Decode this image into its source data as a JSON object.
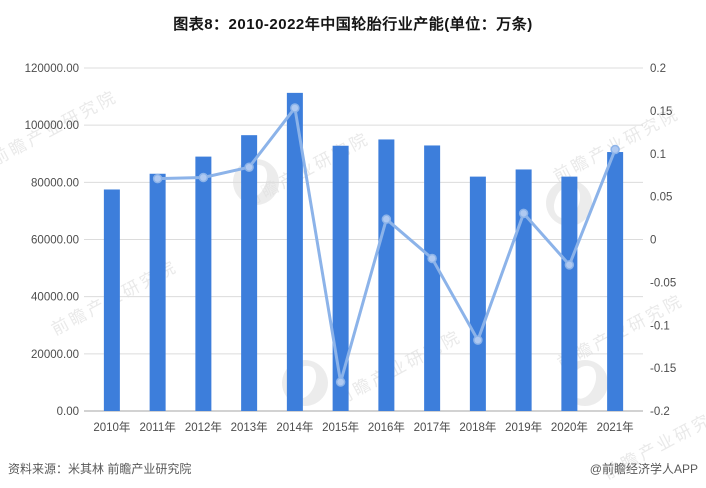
{
  "title": "图表8：2010-2022年中国轮胎行业产能(单位：万条)",
  "footer": {
    "source": "资料来源：米其林 前瞻产业研究院",
    "brand": "@前瞻经济学人APP"
  },
  "watermark": {
    "text": "前瞻产业研究院"
  },
  "colors": {
    "bar": "#3D7EDB",
    "line": "#8CB3E9",
    "marker_fill": "#AFC9F1",
    "gridline": "#dcdcdc",
    "axis_line": "#a6a6a6",
    "tick_text": "#4d4d4d"
  },
  "chart_data": {
    "type": "bar",
    "subtype": "bar+line combo, line on secondary axis",
    "title": "图表8：2010-2022年中国轮胎行业产能(单位：万条)",
    "categories": [
      "2010年",
      "2011年",
      "2012年",
      "2013年",
      "2014年",
      "2015年",
      "2016年",
      "2017年",
      "2018年",
      "2019年",
      "2020年",
      "2021年"
    ],
    "series": [
      {
        "name": "capacity_wantiao",
        "type": "bar",
        "axis": "left",
        "values": [
          77500,
          83000,
          89000,
          96500,
          111300,
          92800,
          95000,
          92900,
          82000,
          84500,
          82000,
          90600
        ]
      },
      {
        "name": "yoy_growth",
        "type": "line",
        "axis": "right",
        "values": [
          null,
          0.071,
          0.0723,
          0.0843,
          0.1534,
          -0.1662,
          0.0237,
          -0.0221,
          -0.1173,
          0.0305,
          -0.0296,
          0.1049
        ]
      }
    ],
    "left_axis": {
      "min": 0,
      "max": 120000,
      "step": 20000,
      "ticks": [
        {
          "value": 0,
          "label": "0.00"
        },
        {
          "value": 20000,
          "label": "20000.00"
        },
        {
          "value": 40000,
          "label": "40000.00"
        },
        {
          "value": 60000,
          "label": "60000.00"
        },
        {
          "value": 80000,
          "label": "80000.00"
        },
        {
          "value": 100000,
          "label": "100000.00"
        },
        {
          "value": 120000,
          "label": "120000.00"
        }
      ]
    },
    "right_axis": {
      "min": -0.2,
      "max": 0.2,
      "step": 0.05,
      "ticks": [
        {
          "value": -0.2,
          "label": "-0.2"
        },
        {
          "value": -0.15,
          "label": "-0.15"
        },
        {
          "value": -0.1,
          "label": "-0.1"
        },
        {
          "value": -0.05,
          "label": "-0.05"
        },
        {
          "value": 0,
          "label": "0"
        },
        {
          "value": 0.05,
          "label": "0.05"
        },
        {
          "value": 0.1,
          "label": "0.1"
        },
        {
          "value": 0.15,
          "label": "0.15"
        },
        {
          "value": 0.2,
          "label": "0.2"
        }
      ]
    },
    "grid": true,
    "legend": false
  }
}
